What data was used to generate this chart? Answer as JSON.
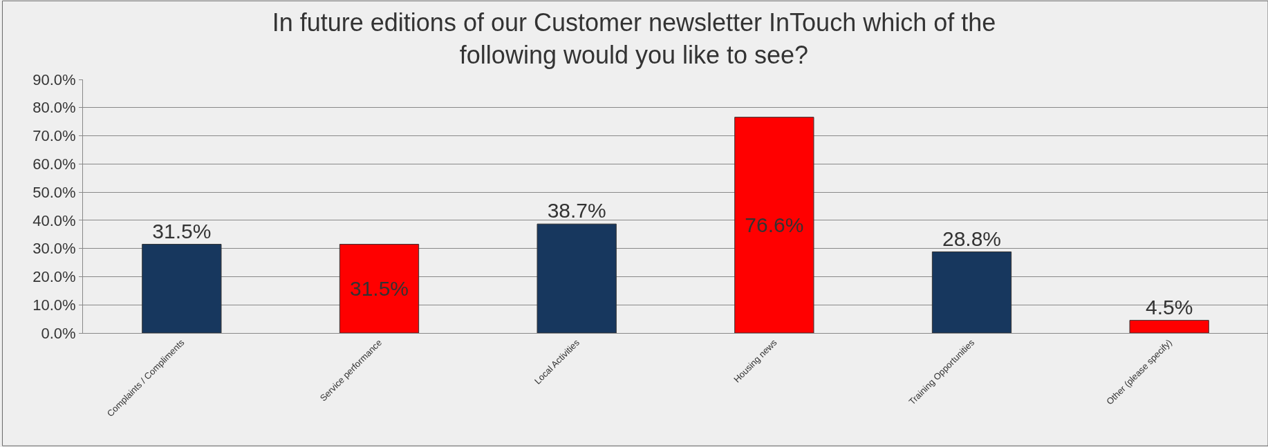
{
  "chart_data": {
    "type": "bar",
    "title": "In future editions of our Customer newsletter InTouch which of the following would you like to see?",
    "categories": [
      "Complaints / Compliments",
      "Service performance",
      "Local Activities",
      "Housing news",
      "Training Opportunities",
      "Other (please specify)"
    ],
    "values": [
      31.5,
      31.5,
      38.7,
      76.6,
      28.8,
      4.5
    ],
    "colors": [
      "#17375e",
      "#ff0000",
      "#17375e",
      "#ff0000",
      "#17375e",
      "#ff0000"
    ],
    "value_labels": [
      "31.5%",
      "31.5%",
      "38.7%",
      "76.6%",
      "28.8%",
      "4.5%"
    ],
    "ylim": [
      0,
      90
    ],
    "yticks": [
      {
        "value": 0,
        "label": "0.0%"
      },
      {
        "value": 10,
        "label": "10.0%"
      },
      {
        "value": 20,
        "label": "20.0%"
      },
      {
        "value": 30,
        "label": "30.0%"
      },
      {
        "value": 40,
        "label": "40.0%"
      },
      {
        "value": 50,
        "label": "50.0%"
      },
      {
        "value": 60,
        "label": "60.0%"
      },
      {
        "value": 70,
        "label": "70.0%"
      },
      {
        "value": 80,
        "label": "80.0%"
      },
      {
        "value": 90,
        "label": "90.0%"
      }
    ],
    "grid": "y"
  }
}
